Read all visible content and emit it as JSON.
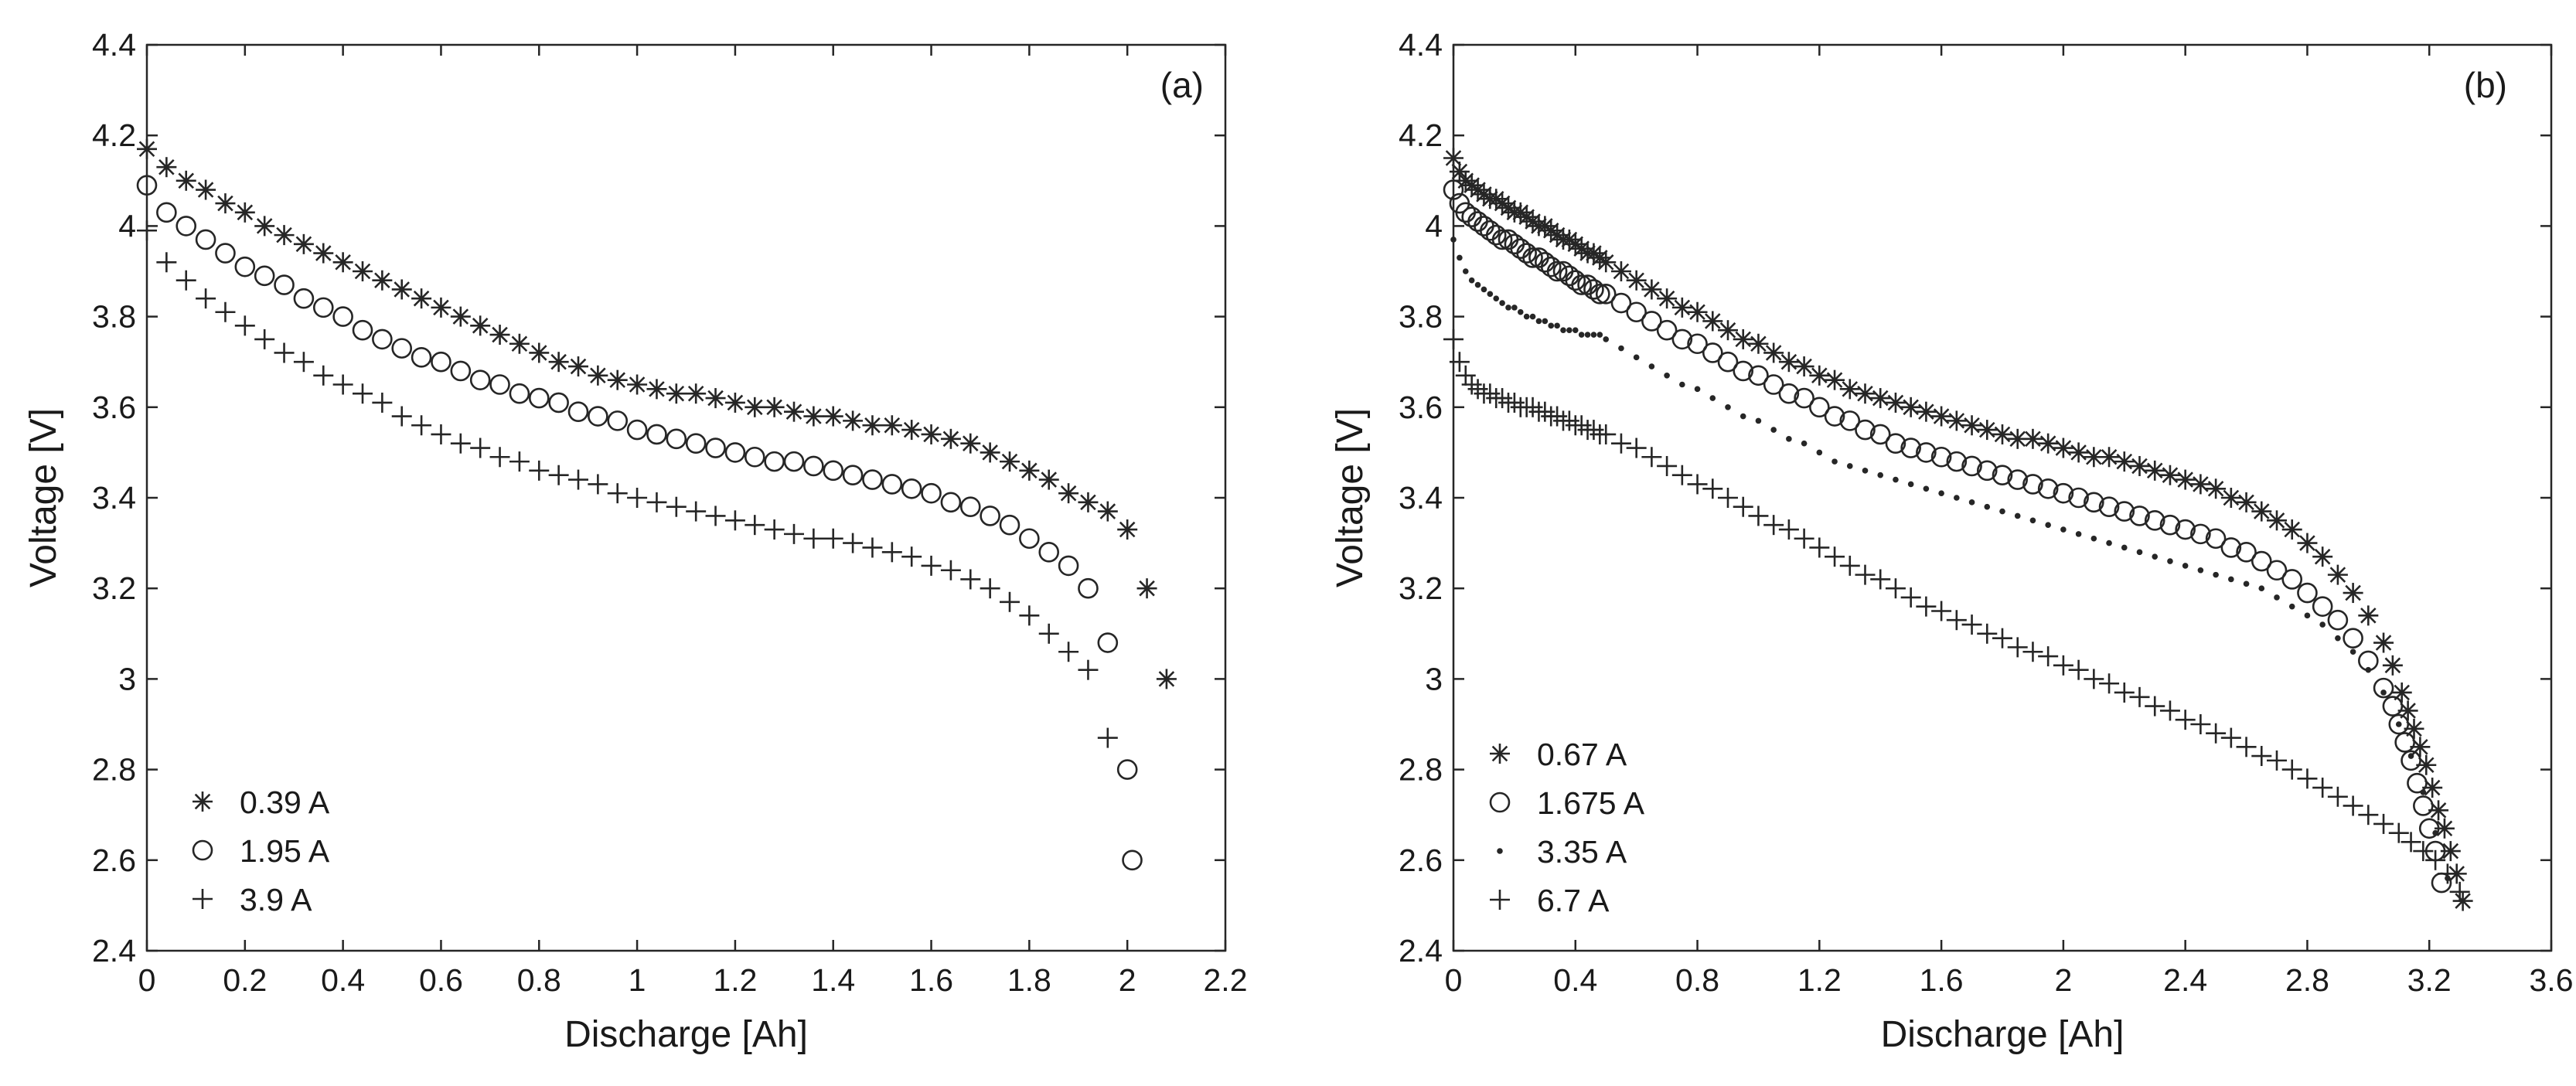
{
  "chart_data": [
    {
      "type": "scatter",
      "panel_label": "(a)",
      "xlabel": "Discharge [Ah]",
      "ylabel": "Voltage [V]",
      "xlim": [
        0,
        2.2
      ],
      "ylim": [
        2.4,
        4.4
      ],
      "xticks": [
        "0",
        "0.2",
        "0.4",
        "0.6",
        "0.8",
        "1",
        "1.2",
        "1.4",
        "1.6",
        "1.8",
        "2",
        "2.2"
      ],
      "yticks": [
        "2.4",
        "2.6",
        "2.8",
        "3",
        "3.2",
        "3.4",
        "3.6",
        "3.8",
        "4",
        "4.2",
        "4.4"
      ],
      "grid": false,
      "legend_position": "bottom-left",
      "series": [
        {
          "name": "0.39 A",
          "marker": "asterisk",
          "x": [
            0.0,
            0.04,
            0.08,
            0.12,
            0.16,
            0.2,
            0.24,
            0.28,
            0.32,
            0.36,
            0.4,
            0.44,
            0.48,
            0.52,
            0.56,
            0.6,
            0.64,
            0.68,
            0.72,
            0.76,
            0.8,
            0.84,
            0.88,
            0.92,
            0.96,
            1.0,
            1.04,
            1.08,
            1.12,
            1.16,
            1.2,
            1.24,
            1.28,
            1.32,
            1.36,
            1.4,
            1.44,
            1.48,
            1.52,
            1.56,
            1.6,
            1.64,
            1.68,
            1.72,
            1.76,
            1.8,
            1.84,
            1.88,
            1.92,
            1.96,
            2.0,
            2.04,
            2.08
          ],
          "y": [
            4.17,
            4.13,
            4.1,
            4.08,
            4.05,
            4.03,
            4.0,
            3.98,
            3.96,
            3.94,
            3.92,
            3.9,
            3.88,
            3.86,
            3.84,
            3.82,
            3.8,
            3.78,
            3.76,
            3.74,
            3.72,
            3.7,
            3.69,
            3.67,
            3.66,
            3.65,
            3.64,
            3.63,
            3.63,
            3.62,
            3.61,
            3.6,
            3.6,
            3.59,
            3.58,
            3.58,
            3.57,
            3.56,
            3.56,
            3.55,
            3.54,
            3.53,
            3.52,
            3.5,
            3.48,
            3.46,
            3.44,
            3.41,
            3.39,
            3.37,
            3.33,
            3.2,
            3.0
          ]
        },
        {
          "name": "1.95 A",
          "marker": "circle",
          "x": [
            0.0,
            0.04,
            0.08,
            0.12,
            0.16,
            0.2,
            0.24,
            0.28,
            0.32,
            0.36,
            0.4,
            0.44,
            0.48,
            0.52,
            0.56,
            0.6,
            0.64,
            0.68,
            0.72,
            0.76,
            0.8,
            0.84,
            0.88,
            0.92,
            0.96,
            1.0,
            1.04,
            1.08,
            1.12,
            1.16,
            1.2,
            1.24,
            1.28,
            1.32,
            1.36,
            1.4,
            1.44,
            1.48,
            1.52,
            1.56,
            1.6,
            1.64,
            1.68,
            1.72,
            1.76,
            1.8,
            1.84,
            1.88,
            1.92,
            1.96,
            2.0,
            2.01
          ],
          "y": [
            4.09,
            4.03,
            4.0,
            3.97,
            3.94,
            3.91,
            3.89,
            3.87,
            3.84,
            3.82,
            3.8,
            3.77,
            3.75,
            3.73,
            3.71,
            3.7,
            3.68,
            3.66,
            3.65,
            3.63,
            3.62,
            3.61,
            3.59,
            3.58,
            3.57,
            3.55,
            3.54,
            3.53,
            3.52,
            3.51,
            3.5,
            3.49,
            3.48,
            3.48,
            3.47,
            3.46,
            3.45,
            3.44,
            3.43,
            3.42,
            3.41,
            3.39,
            3.38,
            3.36,
            3.34,
            3.31,
            3.28,
            3.25,
            3.2,
            3.08,
            2.8,
            2.6
          ]
        },
        {
          "name": "3.9 A",
          "marker": "plus",
          "x": [
            0.0,
            0.04,
            0.08,
            0.12,
            0.16,
            0.2,
            0.24,
            0.28,
            0.32,
            0.36,
            0.4,
            0.44,
            0.48,
            0.52,
            0.56,
            0.6,
            0.64,
            0.68,
            0.72,
            0.76,
            0.8,
            0.84,
            0.88,
            0.92,
            0.96,
            1.0,
            1.04,
            1.08,
            1.12,
            1.16,
            1.2,
            1.24,
            1.28,
            1.32,
            1.36,
            1.4,
            1.44,
            1.48,
            1.52,
            1.56,
            1.6,
            1.64,
            1.68,
            1.72,
            1.76,
            1.8,
            1.84,
            1.88,
            1.92,
            1.96
          ],
          "y": [
            3.99,
            3.92,
            3.88,
            3.84,
            3.81,
            3.78,
            3.75,
            3.72,
            3.7,
            3.67,
            3.65,
            3.63,
            3.61,
            3.58,
            3.56,
            3.54,
            3.52,
            3.51,
            3.49,
            3.48,
            3.46,
            3.45,
            3.44,
            3.43,
            3.41,
            3.4,
            3.39,
            3.38,
            3.37,
            3.36,
            3.35,
            3.34,
            3.33,
            3.32,
            3.31,
            3.31,
            3.3,
            3.29,
            3.28,
            3.27,
            3.25,
            3.24,
            3.22,
            3.2,
            3.17,
            3.14,
            3.1,
            3.06,
            3.02,
            2.87
          ]
        }
      ]
    },
    {
      "type": "scatter",
      "panel_label": "(b)",
      "xlabel": "Discharge [Ah]",
      "ylabel": "Voltage [V]",
      "xlim": [
        0,
        3.6
      ],
      "ylim": [
        2.4,
        4.4
      ],
      "xticks": [
        "0",
        "0.4",
        "0.8",
        "1.2",
        "1.6",
        "2",
        "2.4",
        "2.8",
        "3.2",
        "3.6"
      ],
      "yticks": [
        "2.4",
        "2.6",
        "2.8",
        "3",
        "3.2",
        "3.4",
        "3.6",
        "3.8",
        "4",
        "4.2",
        "4.4"
      ],
      "grid": false,
      "legend_position": "bottom-left",
      "series": [
        {
          "name": "0.67 A",
          "marker": "asterisk",
          "x": [
            0.0,
            0.02,
            0.04,
            0.06,
            0.08,
            0.1,
            0.12,
            0.14,
            0.16,
            0.18,
            0.2,
            0.22,
            0.24,
            0.26,
            0.28,
            0.3,
            0.32,
            0.34,
            0.36,
            0.38,
            0.4,
            0.42,
            0.44,
            0.46,
            0.48,
            0.5,
            0.55,
            0.6,
            0.65,
            0.7,
            0.75,
            0.8,
            0.85,
            0.9,
            0.95,
            1.0,
            1.05,
            1.1,
            1.15,
            1.2,
            1.25,
            1.3,
            1.35,
            1.4,
            1.45,
            1.5,
            1.55,
            1.6,
            1.65,
            1.7,
            1.75,
            1.8,
            1.85,
            1.9,
            1.95,
            2.0,
            2.05,
            2.1,
            2.15,
            2.2,
            2.25,
            2.3,
            2.35,
            2.4,
            2.45,
            2.5,
            2.55,
            2.6,
            2.65,
            2.7,
            2.75,
            2.8,
            2.85,
            2.9,
            2.95,
            3.0,
            3.05,
            3.08,
            3.11,
            3.13,
            3.15,
            3.17,
            3.19,
            3.21,
            3.23,
            3.25,
            3.27,
            3.29,
            3.31
          ],
          "y": [
            4.15,
            4.12,
            4.1,
            4.09,
            4.08,
            4.07,
            4.06,
            4.06,
            4.05,
            4.04,
            4.03,
            4.03,
            4.02,
            4.01,
            4.0,
            4.0,
            3.99,
            3.98,
            3.97,
            3.97,
            3.96,
            3.95,
            3.94,
            3.94,
            3.93,
            3.92,
            3.9,
            3.88,
            3.86,
            3.84,
            3.82,
            3.81,
            3.79,
            3.77,
            3.75,
            3.74,
            3.72,
            3.7,
            3.69,
            3.67,
            3.66,
            3.64,
            3.63,
            3.62,
            3.61,
            3.6,
            3.59,
            3.58,
            3.57,
            3.56,
            3.55,
            3.54,
            3.53,
            3.53,
            3.52,
            3.51,
            3.5,
            3.49,
            3.49,
            3.48,
            3.47,
            3.46,
            3.45,
            3.44,
            3.43,
            3.42,
            3.4,
            3.39,
            3.37,
            3.35,
            3.33,
            3.3,
            3.27,
            3.23,
            3.19,
            3.14,
            3.08,
            3.03,
            2.97,
            2.93,
            2.89,
            2.85,
            2.81,
            2.76,
            2.71,
            2.67,
            2.62,
            2.57,
            2.51
          ]
        },
        {
          "name": "1.675 A",
          "marker": "circle",
          "x": [
            0.0,
            0.02,
            0.04,
            0.06,
            0.08,
            0.1,
            0.12,
            0.14,
            0.16,
            0.18,
            0.2,
            0.22,
            0.24,
            0.26,
            0.28,
            0.3,
            0.32,
            0.34,
            0.36,
            0.38,
            0.4,
            0.42,
            0.44,
            0.46,
            0.48,
            0.5,
            0.55,
            0.6,
            0.65,
            0.7,
            0.75,
            0.8,
            0.85,
            0.9,
            0.95,
            1.0,
            1.05,
            1.1,
            1.15,
            1.2,
            1.25,
            1.3,
            1.35,
            1.4,
            1.45,
            1.5,
            1.55,
            1.6,
            1.65,
            1.7,
            1.75,
            1.8,
            1.85,
            1.9,
            1.95,
            2.0,
            2.05,
            2.1,
            2.15,
            2.2,
            2.25,
            2.3,
            2.35,
            2.4,
            2.45,
            2.5,
            2.55,
            2.6,
            2.65,
            2.7,
            2.75,
            2.8,
            2.85,
            2.9,
            2.95,
            3.0,
            3.05,
            3.08,
            3.1,
            3.12,
            3.14,
            3.16,
            3.18,
            3.2,
            3.22,
            3.24
          ],
          "y": [
            4.08,
            4.05,
            4.03,
            4.02,
            4.01,
            4.0,
            3.99,
            3.98,
            3.97,
            3.97,
            3.96,
            3.95,
            3.94,
            3.93,
            3.93,
            3.92,
            3.91,
            3.9,
            3.9,
            3.89,
            3.88,
            3.87,
            3.87,
            3.86,
            3.85,
            3.85,
            3.83,
            3.81,
            3.79,
            3.77,
            3.75,
            3.74,
            3.72,
            3.7,
            3.68,
            3.67,
            3.65,
            3.63,
            3.62,
            3.6,
            3.58,
            3.57,
            3.55,
            3.54,
            3.52,
            3.51,
            3.5,
            3.49,
            3.48,
            3.47,
            3.46,
            3.45,
            3.44,
            3.43,
            3.42,
            3.41,
            3.4,
            3.39,
            3.38,
            3.37,
            3.36,
            3.35,
            3.34,
            3.33,
            3.32,
            3.31,
            3.29,
            3.28,
            3.26,
            3.24,
            3.22,
            3.19,
            3.16,
            3.13,
            3.09,
            3.04,
            2.98,
            2.94,
            2.9,
            2.86,
            2.82,
            2.77,
            2.72,
            2.67,
            2.62,
            2.55
          ]
        },
        {
          "name": "3.35 A",
          "marker": "dot",
          "x": [
            0.0,
            0.02,
            0.04,
            0.06,
            0.08,
            0.1,
            0.12,
            0.14,
            0.16,
            0.18,
            0.2,
            0.22,
            0.24,
            0.26,
            0.28,
            0.3,
            0.32,
            0.34,
            0.36,
            0.38,
            0.4,
            0.42,
            0.44,
            0.46,
            0.48,
            0.5,
            0.55,
            0.6,
            0.65,
            0.7,
            0.75,
            0.8,
            0.85,
            0.9,
            0.95,
            1.0,
            1.05,
            1.1,
            1.15,
            1.2,
            1.25,
            1.3,
            1.35,
            1.4,
            1.45,
            1.5,
            1.55,
            1.6,
            1.65,
            1.7,
            1.75,
            1.8,
            1.85,
            1.9,
            1.95,
            2.0,
            2.05,
            2.1,
            2.15,
            2.2,
            2.25,
            2.3,
            2.35,
            2.4,
            2.45,
            2.5,
            2.55,
            2.6,
            2.65,
            2.7,
            2.75,
            2.8,
            2.85,
            2.9,
            2.95,
            3.0,
            3.05,
            3.1,
            3.14,
            3.18,
            3.22,
            3.26
          ],
          "y": [
            3.97,
            3.93,
            3.9,
            3.88,
            3.87,
            3.86,
            3.85,
            3.84,
            3.83,
            3.82,
            3.82,
            3.81,
            3.8,
            3.8,
            3.79,
            3.79,
            3.78,
            3.78,
            3.77,
            3.77,
            3.77,
            3.76,
            3.76,
            3.76,
            3.76,
            3.75,
            3.73,
            3.71,
            3.69,
            3.67,
            3.65,
            3.64,
            3.62,
            3.6,
            3.58,
            3.57,
            3.55,
            3.53,
            3.52,
            3.5,
            3.48,
            3.47,
            3.46,
            3.45,
            3.44,
            3.43,
            3.42,
            3.41,
            3.4,
            3.39,
            3.38,
            3.37,
            3.36,
            3.35,
            3.34,
            3.33,
            3.32,
            3.31,
            3.3,
            3.29,
            3.28,
            3.27,
            3.26,
            3.25,
            3.24,
            3.23,
            3.22,
            3.21,
            3.2,
            3.18,
            3.16,
            3.14,
            3.12,
            3.09,
            3.06,
            3.02,
            2.97,
            2.9,
            2.83,
            2.75,
            2.66,
            2.56
          ]
        },
        {
          "name": "6.7 A",
          "marker": "plus",
          "x": [
            0.0,
            0.02,
            0.04,
            0.06,
            0.08,
            0.1,
            0.12,
            0.14,
            0.16,
            0.18,
            0.2,
            0.22,
            0.24,
            0.26,
            0.28,
            0.3,
            0.32,
            0.34,
            0.36,
            0.38,
            0.4,
            0.42,
            0.44,
            0.46,
            0.48,
            0.5,
            0.55,
            0.6,
            0.65,
            0.7,
            0.75,
            0.8,
            0.85,
            0.9,
            0.95,
            1.0,
            1.05,
            1.1,
            1.15,
            1.2,
            1.25,
            1.3,
            1.35,
            1.4,
            1.45,
            1.5,
            1.55,
            1.6,
            1.65,
            1.7,
            1.75,
            1.8,
            1.85,
            1.9,
            1.95,
            2.0,
            2.05,
            2.1,
            2.15,
            2.2,
            2.25,
            2.3,
            2.35,
            2.4,
            2.45,
            2.5,
            2.55,
            2.6,
            2.65,
            2.7,
            2.75,
            2.8,
            2.85,
            2.9,
            2.95,
            3.0,
            3.05,
            3.1,
            3.14,
            3.18,
            3.22,
            3.26,
            3.3
          ],
          "y": [
            3.75,
            3.7,
            3.67,
            3.65,
            3.64,
            3.63,
            3.63,
            3.62,
            3.62,
            3.61,
            3.61,
            3.6,
            3.6,
            3.6,
            3.59,
            3.59,
            3.58,
            3.58,
            3.57,
            3.57,
            3.56,
            3.56,
            3.55,
            3.55,
            3.54,
            3.54,
            3.52,
            3.51,
            3.49,
            3.47,
            3.45,
            3.43,
            3.42,
            3.4,
            3.38,
            3.36,
            3.34,
            3.33,
            3.31,
            3.29,
            3.27,
            3.25,
            3.23,
            3.22,
            3.2,
            3.18,
            3.16,
            3.15,
            3.13,
            3.12,
            3.1,
            3.09,
            3.07,
            3.06,
            3.05,
            3.03,
            3.02,
            3.0,
            2.99,
            2.97,
            2.96,
            2.94,
            2.93,
            2.91,
            2.9,
            2.88,
            2.87,
            2.85,
            2.83,
            2.82,
            2.8,
            2.78,
            2.76,
            2.74,
            2.72,
            2.7,
            2.68,
            2.66,
            2.64,
            2.62,
            2.6,
            2.57,
            2.53
          ]
        }
      ]
    }
  ]
}
